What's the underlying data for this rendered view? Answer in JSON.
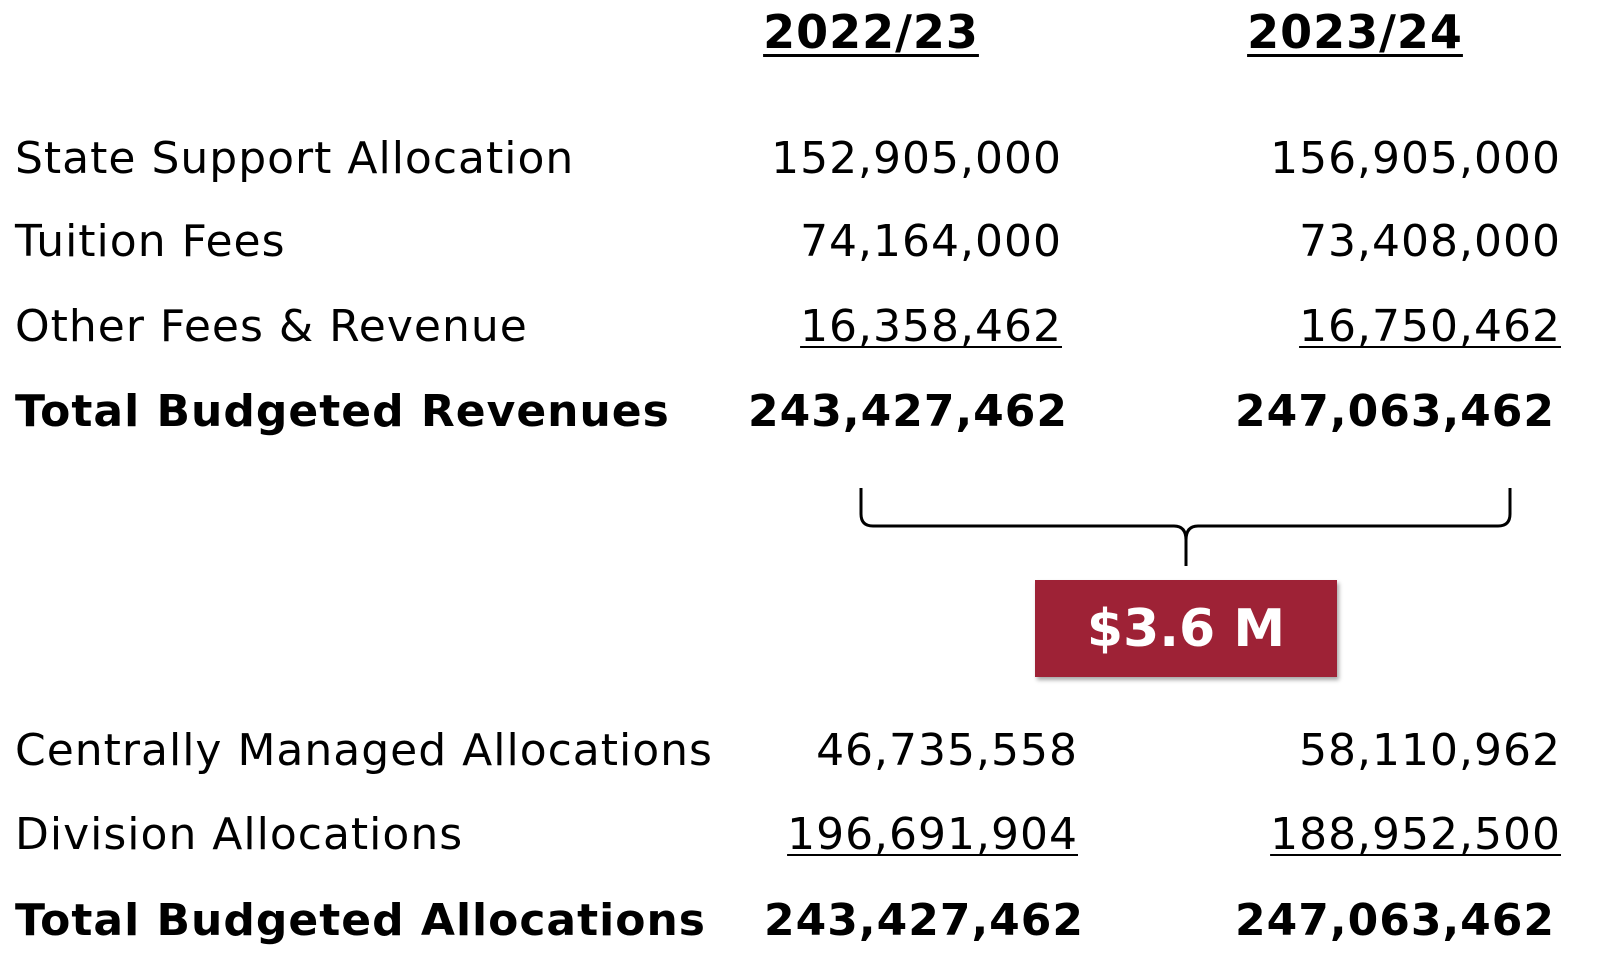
{
  "headers": [
    "2022/23",
    "2023/24"
  ],
  "revenues": {
    "rows": [
      {
        "label": "State Support Allocation",
        "values": [
          "152,905,000",
          "156,905,000"
        ]
      },
      {
        "label": "Tuition Fees",
        "values": [
          "74,164,000",
          "73,408,000"
        ]
      },
      {
        "label": "Other Fees & Revenue",
        "values": [
          "16,358,462",
          "16,750,462"
        ]
      }
    ],
    "total": {
      "label": "Total Budgeted Revenues",
      "values": [
        "243,427,462",
        "247,063,462"
      ]
    }
  },
  "badge": "$3.6 M",
  "allocations": {
    "rows": [
      {
        "label": "Centrally Managed Allocations",
        "values": [
          "46,735,558",
          "58,110,962"
        ]
      },
      {
        "label": "Division Allocations",
        "values": [
          "196,691,904",
          "188,952,500"
        ]
      }
    ],
    "total": {
      "label": "Total Budgeted Allocations",
      "values": [
        "243,427,462",
        "247,063,462"
      ]
    }
  }
}
